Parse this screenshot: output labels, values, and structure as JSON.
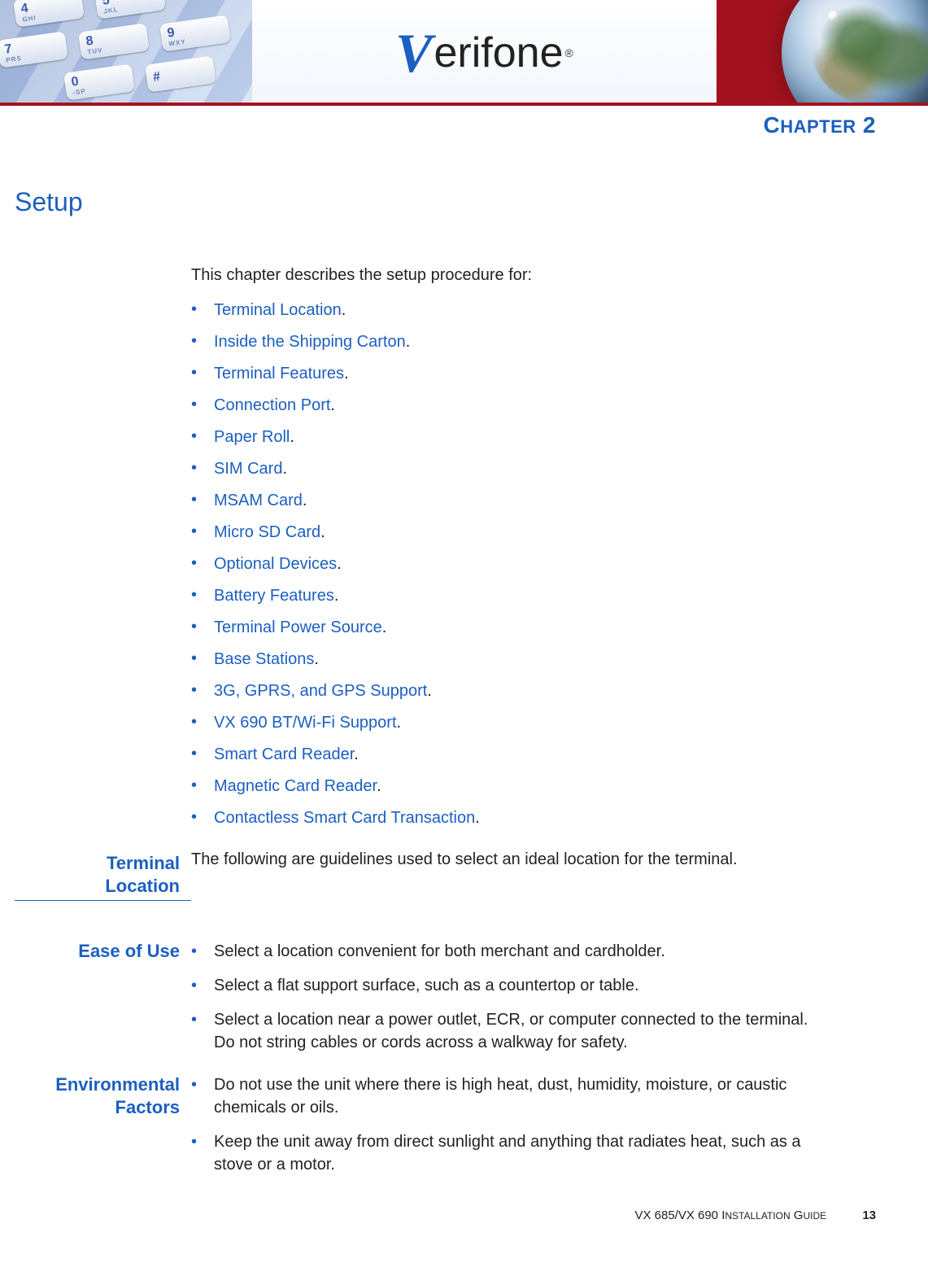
{
  "colors": {
    "accent": "#1b5fc1",
    "text": "#222222",
    "banner_red": "#a3121e",
    "background": "#ffffff"
  },
  "typography": {
    "body_fontsize_pt": 15,
    "h1_fontsize_pt": 24,
    "chapter_fontsize_pt": 21,
    "label_fontsize_pt": 17
  },
  "banner": {
    "logo_v": "V",
    "logo_rest": "erifone",
    "registered": "®"
  },
  "chapter": {
    "prefix": "C",
    "rest": "HAPTER",
    "number": "2"
  },
  "title": "Setup",
  "intro": "This chapter describes the setup procedure for:",
  "toc_items": [
    "Terminal Location",
    "Inside the Shipping Carton",
    "Terminal Features",
    "Connection Port",
    "Paper Roll",
    "SIM Card",
    "MSAM Card",
    "Micro SD Card",
    "Optional Devices",
    "Battery Features",
    "Terminal Power Source",
    "Base Stations",
    "3G, GPRS, and GPS Support",
    "VX 690 BT/Wi-Fi Support",
    "Smart Card Reader",
    "Magnetic Card Reader",
    "Contactless Smart Card Transaction"
  ],
  "sections": {
    "terminal_location": {
      "label_line1": "Terminal",
      "label_line2": "Location",
      "lead": "The following are guidelines used to select an ideal location for the terminal."
    },
    "ease_of_use": {
      "label": "Ease of Use",
      "items": [
        "Select a location convenient for both merchant and cardholder.",
        "Select a flat support surface, such as a countertop or table.",
        "Select a location near a power outlet, ECR, or computer connected to the terminal. Do not string cables or cords across a walkway for safety."
      ]
    },
    "environmental_factors": {
      "label_line1": "Environmental",
      "label_line2": "Factors",
      "items": [
        "Do not use the unit where there is high heat, dust, humidity, moisture, or caustic chemicals or oils.",
        "Keep the unit away from direct sunlight and anything that radiates heat, such as a stove or a motor."
      ]
    }
  },
  "footer": {
    "doc_title_a": "VX 685/VX 690 I",
    "doc_title_b": "NSTALLATION",
    "doc_title_c": " G",
    "doc_title_d": "UIDE",
    "page_number": "13"
  }
}
